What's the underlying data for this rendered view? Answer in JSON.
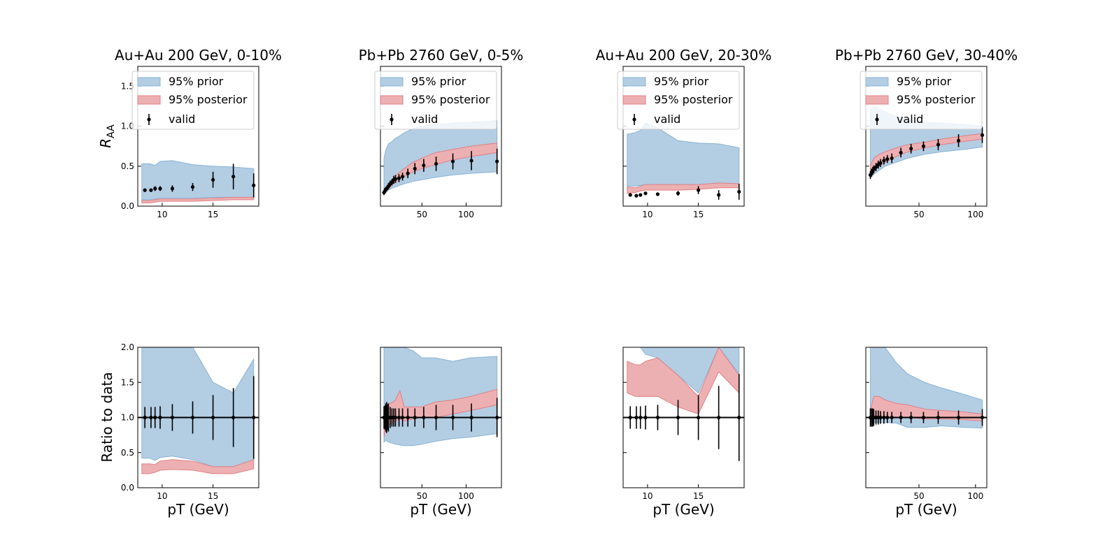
{
  "figure": {
    "ylabel_top": "R",
    "ylabel_top_sub": "AA",
    "ylabel_bottom": "Ratio to data",
    "xlabel": "pT (GeV)",
    "legend": {
      "prior": "95% prior",
      "posterior": "95% posterior",
      "valid": "valid",
      "placement": "top-center"
    },
    "colors": {
      "prior_fill": "#b3cde3",
      "prior_edge": "#88b4d6",
      "posterior_fill": "#edb0b2",
      "posterior_edge": "#e07f84",
      "points": "#000000"
    }
  },
  "chart_data": [
    {
      "type": "area",
      "title": "Au+Au 200 GeV, 0-10%",
      "row": "raa",
      "xlim": [
        7.6,
        19.5
      ],
      "ylim": [
        0,
        1.75
      ],
      "xticks": [
        10,
        15
      ],
      "yticks": [
        0.0,
        0.5,
        1.0,
        1.5
      ],
      "prior": {
        "x": [
          8,
          8.8,
          9.3,
          9.8,
          11,
          13,
          15,
          17,
          19
        ],
        "low": [
          0.08,
          0.08,
          0.09,
          0.1,
          0.1,
          0.1,
          0.11,
          0.11,
          0.11
        ],
        "high": [
          0.53,
          0.53,
          0.51,
          0.56,
          0.57,
          0.52,
          0.5,
          0.49,
          0.47
        ]
      },
      "posterior": {
        "x": [
          8,
          8.8,
          9.3,
          9.8,
          11,
          13,
          15,
          17,
          19
        ],
        "low": [
          0.04,
          0.04,
          0.05,
          0.06,
          0.06,
          0.06,
          0.07,
          0.08,
          0.08
        ],
        "high": [
          0.07,
          0.07,
          0.08,
          0.09,
          0.09,
          0.09,
          0.1,
          0.11,
          0.11
        ]
      },
      "valid": {
        "x": [
          8.3,
          8.9,
          9.3,
          9.8,
          11,
          13,
          15,
          17,
          19
        ],
        "y": [
          0.2,
          0.2,
          0.22,
          0.22,
          0.22,
          0.24,
          0.33,
          0.37,
          0.26
        ],
        "err": [
          0.02,
          0.02,
          0.03,
          0.03,
          0.04,
          0.05,
          0.1,
          0.16,
          0.15
        ]
      }
    },
    {
      "type": "area",
      "title": "Pb+Pb 2760 GeV, 0-5%",
      "row": "raa",
      "xlim": [
        3,
        140
      ],
      "ylim": [
        0,
        1.75
      ],
      "xticks": [
        50,
        100
      ],
      "yticks": [
        0.0,
        0.5,
        1.0,
        1.5
      ],
      "prior": {
        "x": [
          7,
          9,
          12,
          15,
          20,
          25,
          30,
          40,
          50,
          65,
          85,
          105,
          135
        ],
        "low": [
          0.15,
          0.17,
          0.2,
          0.22,
          0.24,
          0.26,
          0.28,
          0.31,
          0.33,
          0.36,
          0.39,
          0.41,
          0.43
        ],
        "high": [
          0.6,
          0.7,
          0.78,
          0.8,
          0.85,
          0.88,
          0.92,
          0.97,
          1.0,
          1.02,
          1.04,
          1.05,
          1.07
        ]
      },
      "posterior": {
        "x": [
          7,
          9,
          12,
          15,
          20,
          25,
          30,
          40,
          50,
          65,
          85,
          105,
          135
        ],
        "low": [
          0.14,
          0.18,
          0.22,
          0.25,
          0.3,
          0.34,
          0.37,
          0.43,
          0.47,
          0.52,
          0.58,
          0.62,
          0.67
        ],
        "high": [
          0.18,
          0.22,
          0.27,
          0.31,
          0.38,
          0.43,
          0.47,
          0.55,
          0.6,
          0.67,
          0.71,
          0.75,
          0.79
        ]
      },
      "valid": {
        "x": [
          7,
          8,
          9,
          10,
          11,
          12,
          14,
          16,
          18,
          20,
          24,
          28,
          34,
          42,
          52,
          66,
          85,
          106,
          135
        ],
        "y": [
          0.17,
          0.19,
          0.21,
          0.22,
          0.23,
          0.25,
          0.28,
          0.3,
          0.33,
          0.34,
          0.35,
          0.37,
          0.41,
          0.47,
          0.51,
          0.53,
          0.56,
          0.57,
          0.56
        ],
        "err": [
          0.03,
          0.03,
          0.03,
          0.03,
          0.03,
          0.04,
          0.04,
          0.04,
          0.05,
          0.05,
          0.05,
          0.05,
          0.06,
          0.07,
          0.08,
          0.09,
          0.1,
          0.12,
          0.16
        ]
      }
    },
    {
      "type": "area",
      "title": "Au+Au 200 GeV, 20-30%",
      "row": "raa",
      "xlim": [
        7.6,
        19.5
      ],
      "ylim": [
        0,
        1.75
      ],
      "xticks": [
        10,
        15
      ],
      "yticks": [
        0.0,
        0.5,
        1.0,
        1.5
      ],
      "prior": {
        "x": [
          8,
          8.8,
          9.3,
          9.8,
          11,
          13,
          15,
          17,
          19
        ],
        "low": [
          0.25,
          0.25,
          0.26,
          0.27,
          0.27,
          0.27,
          0.27,
          0.28,
          0.28
        ],
        "high": [
          0.9,
          0.92,
          0.95,
          1.04,
          0.98,
          0.82,
          0.79,
          0.78,
          0.73
        ]
      },
      "posterior": {
        "x": [
          8,
          8.8,
          9.3,
          9.8,
          11,
          13,
          15,
          17,
          19
        ],
        "low": [
          0.16,
          0.17,
          0.19,
          0.2,
          0.2,
          0.2,
          0.21,
          0.23,
          0.23
        ],
        "high": [
          0.24,
          0.23,
          0.25,
          0.27,
          0.27,
          0.27,
          0.27,
          0.29,
          0.28
        ]
      },
      "valid": {
        "x": [
          8.3,
          8.9,
          9.3,
          9.8,
          11,
          13,
          15,
          17,
          19
        ],
        "y": [
          0.14,
          0.13,
          0.14,
          0.16,
          0.15,
          0.16,
          0.2,
          0.14,
          0.18
        ],
        "err": [
          0.02,
          0.02,
          0.02,
          0.02,
          0.02,
          0.03,
          0.05,
          0.06,
          0.1
        ]
      }
    },
    {
      "type": "area",
      "title": "Pb+Pb 2760 GeV, 30-40%",
      "row": "raa",
      "xlim": [
        3,
        110
      ],
      "ylim": [
        0,
        1.75
      ],
      "xticks": [
        50,
        100
      ],
      "yticks": [
        0.0,
        0.5,
        1.0,
        1.5
      ],
      "prior": {
        "x": [
          7,
          10,
          15,
          20,
          30,
          40,
          55,
          70,
          90,
          106
        ],
        "low": [
          0.35,
          0.4,
          0.45,
          0.5,
          0.55,
          0.6,
          0.65,
          0.68,
          0.71,
          0.74
        ],
        "high": [
          1.2,
          1.25,
          1.22,
          1.18,
          1.12,
          1.08,
          1.05,
          1.04,
          1.02,
          1.0
        ]
      },
      "posterior": {
        "x": [
          7,
          10,
          15,
          20,
          30,
          40,
          55,
          70,
          90,
          106
        ],
        "low": [
          0.35,
          0.45,
          0.5,
          0.55,
          0.62,
          0.68,
          0.73,
          0.77,
          0.81,
          0.84
        ],
        "high": [
          0.5,
          0.6,
          0.65,
          0.68,
          0.73,
          0.77,
          0.8,
          0.84,
          0.88,
          0.91
        ]
      },
      "valid": {
        "x": [
          7,
          8,
          9,
          10,
          12,
          14,
          16,
          19,
          22,
          26,
          34,
          43,
          54,
          67,
          85,
          106
        ],
        "y": [
          0.39,
          0.42,
          0.44,
          0.46,
          0.49,
          0.52,
          0.54,
          0.57,
          0.59,
          0.6,
          0.67,
          0.72,
          0.75,
          0.77,
          0.82,
          0.89
        ],
        "err": [
          0.05,
          0.05,
          0.05,
          0.05,
          0.05,
          0.05,
          0.05,
          0.05,
          0.05,
          0.06,
          0.06,
          0.06,
          0.06,
          0.07,
          0.08,
          0.1
        ]
      }
    },
    {
      "type": "area",
      "title": "",
      "row": "ratio",
      "xlim": [
        7.6,
        19.5
      ],
      "ylim": [
        0,
        2.0
      ],
      "xticks": [
        10,
        15
      ],
      "yticks": [
        0.0,
        0.5,
        1.0,
        1.5,
        2.0
      ],
      "refline": 1.0,
      "prior": {
        "x": [
          8,
          8.8,
          9.3,
          9.8,
          11,
          13,
          15,
          17,
          19
        ],
        "low": [
          0.42,
          0.42,
          0.39,
          0.43,
          0.45,
          0.4,
          0.3,
          0.3,
          0.4
        ],
        "high": [
          2.0,
          2.0,
          2.0,
          2.0,
          2.0,
          2.0,
          1.5,
          1.35,
          1.83
        ]
      },
      "posterior": {
        "x": [
          8,
          8.8,
          9.3,
          9.8,
          11,
          13,
          15,
          17,
          19
        ],
        "low": [
          0.2,
          0.2,
          0.22,
          0.25,
          0.26,
          0.25,
          0.2,
          0.2,
          0.27
        ],
        "high": [
          0.34,
          0.34,
          0.33,
          0.38,
          0.4,
          0.38,
          0.3,
          0.3,
          0.4
        ]
      },
      "valid": {
        "x": [
          8.3,
          8.9,
          9.3,
          9.8,
          11,
          13,
          15,
          17,
          19
        ],
        "y": [
          1,
          1,
          1,
          1,
          1,
          1,
          1,
          1,
          1
        ],
        "err": [
          0.15,
          0.15,
          0.15,
          0.16,
          0.19,
          0.23,
          0.32,
          0.42,
          0.59
        ]
      }
    },
    {
      "type": "area",
      "title": "",
      "row": "ratio",
      "xlim": [
        3,
        140
      ],
      "ylim": [
        0,
        2.0
      ],
      "xticks": [
        50,
        100
      ],
      "yticks": [
        0.0,
        0.5,
        1.0,
        1.5,
        2.0
      ],
      "refline": 1.0,
      "prior": {
        "x": [
          7,
          9,
          12,
          15,
          20,
          25,
          30,
          40,
          50,
          65,
          85,
          105,
          135
        ],
        "low": [
          0.65,
          0.68,
          0.65,
          0.64,
          0.62,
          0.61,
          0.6,
          0.6,
          0.62,
          0.66,
          0.7,
          0.72,
          0.77
        ],
        "high": [
          2.0,
          2.0,
          2.0,
          2.0,
          2.0,
          2.0,
          2.0,
          1.95,
          1.85,
          1.85,
          1.8,
          1.85,
          1.87
        ]
      },
      "posterior": {
        "x": [
          7,
          9,
          12,
          15,
          20,
          25,
          30,
          40,
          50,
          65,
          85,
          105,
          135
        ],
        "low": [
          0.72,
          0.85,
          0.9,
          0.92,
          0.95,
          0.98,
          0.95,
          0.98,
          1.0,
          1.0,
          1.05,
          1.1,
          1.18
        ],
        "high": [
          1.1,
          1.15,
          1.2,
          1.2,
          1.25,
          1.38,
          1.15,
          1.15,
          1.15,
          1.22,
          1.25,
          1.3,
          1.4
        ]
      },
      "valid": {
        "x": [
          7,
          8,
          9,
          10,
          11,
          12,
          14,
          16,
          18,
          20,
          24,
          28,
          34,
          42,
          52,
          66,
          85,
          106,
          135
        ],
        "y": [
          1,
          1,
          1,
          1,
          1,
          1,
          1,
          1,
          1,
          1,
          1,
          1,
          1,
          1,
          1,
          1,
          1,
          1,
          1
        ],
        "err": [
          0.16,
          0.17,
          0.2,
          0.22,
          0.18,
          0.2,
          0.15,
          0.13,
          0.13,
          0.13,
          0.13,
          0.13,
          0.13,
          0.13,
          0.15,
          0.18,
          0.18,
          0.2,
          0.28
        ]
      }
    },
    {
      "type": "area",
      "title": "",
      "row": "ratio",
      "xlim": [
        7.6,
        19.5
      ],
      "ylim": [
        0,
        2.0
      ],
      "xticks": [
        10,
        15
      ],
      "yticks": [
        0.0,
        0.5,
        1.0,
        1.5,
        2.0
      ],
      "refline": 1.0,
      "prior": {
        "x": [
          8,
          8.8,
          9.3,
          9.8,
          11,
          13,
          15,
          17,
          19
        ],
        "low": [
          2.0,
          2.0,
          2.0,
          1.9,
          1.85,
          1.6,
          1.35,
          2.0,
          1.62
        ],
        "high": [
          2.0,
          2.0,
          2.0,
          2.0,
          2.0,
          2.0,
          2.0,
          2.0,
          2.0
        ]
      },
      "posterior": {
        "x": [
          8,
          8.8,
          9.3,
          9.8,
          11,
          13,
          15,
          17,
          19
        ],
        "low": [
          1.35,
          1.3,
          1.3,
          1.3,
          1.3,
          1.15,
          1.05,
          1.65,
          1.35
        ],
        "high": [
          1.8,
          1.75,
          1.75,
          1.8,
          1.85,
          1.6,
          1.3,
          2.0,
          1.6
        ]
      },
      "valid": {
        "x": [
          8.3,
          8.9,
          9.3,
          9.8,
          11,
          13,
          15,
          17,
          19
        ],
        "y": [
          1,
          1,
          1,
          1,
          1,
          1,
          1,
          1,
          1
        ],
        "err": [
          0.16,
          0.16,
          0.16,
          0.17,
          0.18,
          0.25,
          0.32,
          0.45,
          0.62
        ]
      }
    },
    {
      "type": "area",
      "title": "",
      "row": "ratio",
      "xlim": [
        3,
        110
      ],
      "ylim": [
        0,
        2.0
      ],
      "xticks": [
        50,
        100
      ],
      "yticks": [
        0.0,
        0.5,
        1.0,
        1.5,
        2.0
      ],
      "refline": 1.0,
      "prior": {
        "x": [
          7,
          10,
          15,
          20,
          30,
          40,
          55,
          70,
          90,
          106
        ],
        "low": [
          0.95,
          0.93,
          0.93,
          0.93,
          0.92,
          0.86,
          0.86,
          0.88,
          0.86,
          0.85
        ],
        "high": [
          2.0,
          2.0,
          2.0,
          2.0,
          1.78,
          1.62,
          1.5,
          1.42,
          1.33,
          1.25
        ]
      },
      "posterior": {
        "x": [
          7,
          10,
          15,
          20,
          30,
          40,
          55,
          70,
          90,
          106
        ],
        "low": [
          0.98,
          1.0,
          1.0,
          1.0,
          1.0,
          1.0,
          0.98,
          0.98,
          0.97,
          0.95
        ],
        "high": [
          1.1,
          1.3,
          1.3,
          1.25,
          1.2,
          1.18,
          1.12,
          1.1,
          1.08,
          1.05
        ]
      },
      "valid": {
        "x": [
          7,
          8,
          9,
          10,
          12,
          14,
          16,
          19,
          22,
          26,
          34,
          43,
          54,
          67,
          85,
          106
        ],
        "y": [
          1,
          1,
          1,
          1,
          1,
          1,
          1,
          1,
          1,
          1,
          1,
          1,
          1,
          1,
          1,
          1
        ],
        "err": [
          0.13,
          0.13,
          0.13,
          0.12,
          0.1,
          0.1,
          0.09,
          0.09,
          0.08,
          0.08,
          0.08,
          0.08,
          0.08,
          0.09,
          0.1,
          0.12
        ]
      }
    }
  ]
}
